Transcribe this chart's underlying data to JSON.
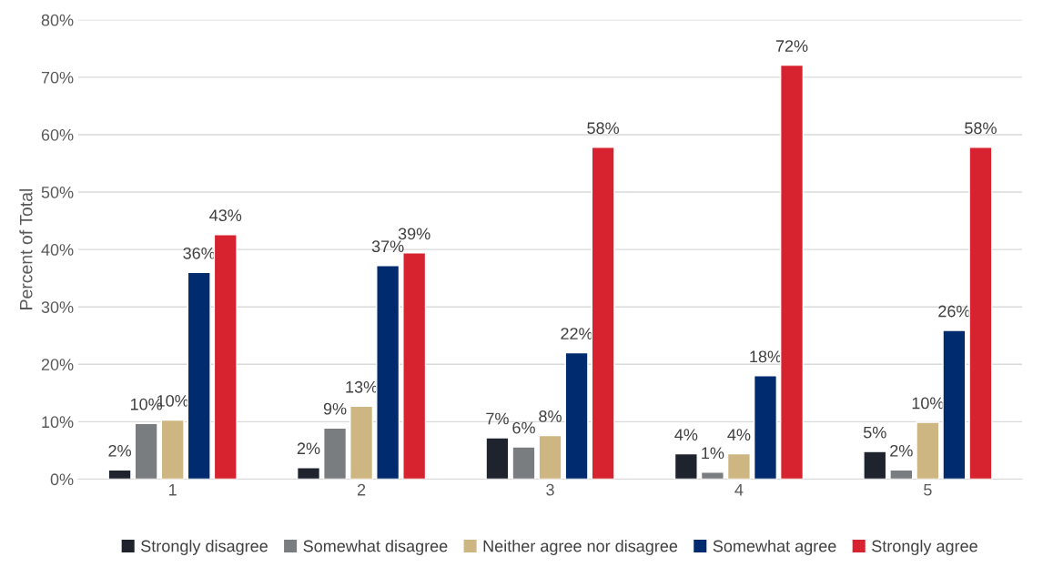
{
  "chart_data": {
    "type": "bar",
    "ylabel": "Percent of Total",
    "categories": [
      "1",
      "2",
      "3",
      "4",
      "5"
    ],
    "series": [
      {
        "name": "Strongly disagree",
        "color": "#1f232e",
        "values": [
          1.6,
          2.0,
          7.2,
          4.4,
          4.8
        ],
        "value_labels": [
          "2%",
          "2%",
          "7%",
          "4%",
          "5%"
        ]
      },
      {
        "name": "Somewhat disagree",
        "color": "#7a7d80",
        "values": [
          9.7,
          8.9,
          5.6,
          1.2,
          1.6
        ],
        "value_labels": [
          "10%",
          "9%",
          "6%",
          "1%",
          "2%"
        ]
      },
      {
        "name": "Neither agree nor disagree",
        "color": "#cdb681",
        "values": [
          10.3,
          12.7,
          7.6,
          4.4,
          9.9
        ],
        "value_labels": [
          "10%",
          "13%",
          "8%",
          "4%",
          "10%"
        ]
      },
      {
        "name": "Somewhat agree",
        "color": "#002b6e",
        "values": [
          36.0,
          37.2,
          22.0,
          18.0,
          25.9
        ],
        "value_labels": [
          "36%",
          "37%",
          "22%",
          "18%",
          "26%"
        ]
      },
      {
        "name": "Strongly agree",
        "color": "#d6232f",
        "values": [
          42.6,
          39.4,
          57.8,
          72.1,
          57.8
        ],
        "value_labels": [
          "43%",
          "39%",
          "58%",
          "72%",
          "58%"
        ]
      }
    ],
    "ylim": [
      0,
      80
    ],
    "yticks": [
      {
        "value": 0,
        "label": "0%"
      },
      {
        "value": 10,
        "label": "10%"
      },
      {
        "value": 20,
        "label": "20%"
      },
      {
        "value": 30,
        "label": "30%"
      },
      {
        "value": 40,
        "label": "40%"
      },
      {
        "value": 50,
        "label": "50%"
      },
      {
        "value": 60,
        "label": "60%"
      },
      {
        "value": 70,
        "label": "70%"
      },
      {
        "value": 80,
        "label": "80%"
      }
    ],
    "grid": "y",
    "legend": "bottom"
  }
}
